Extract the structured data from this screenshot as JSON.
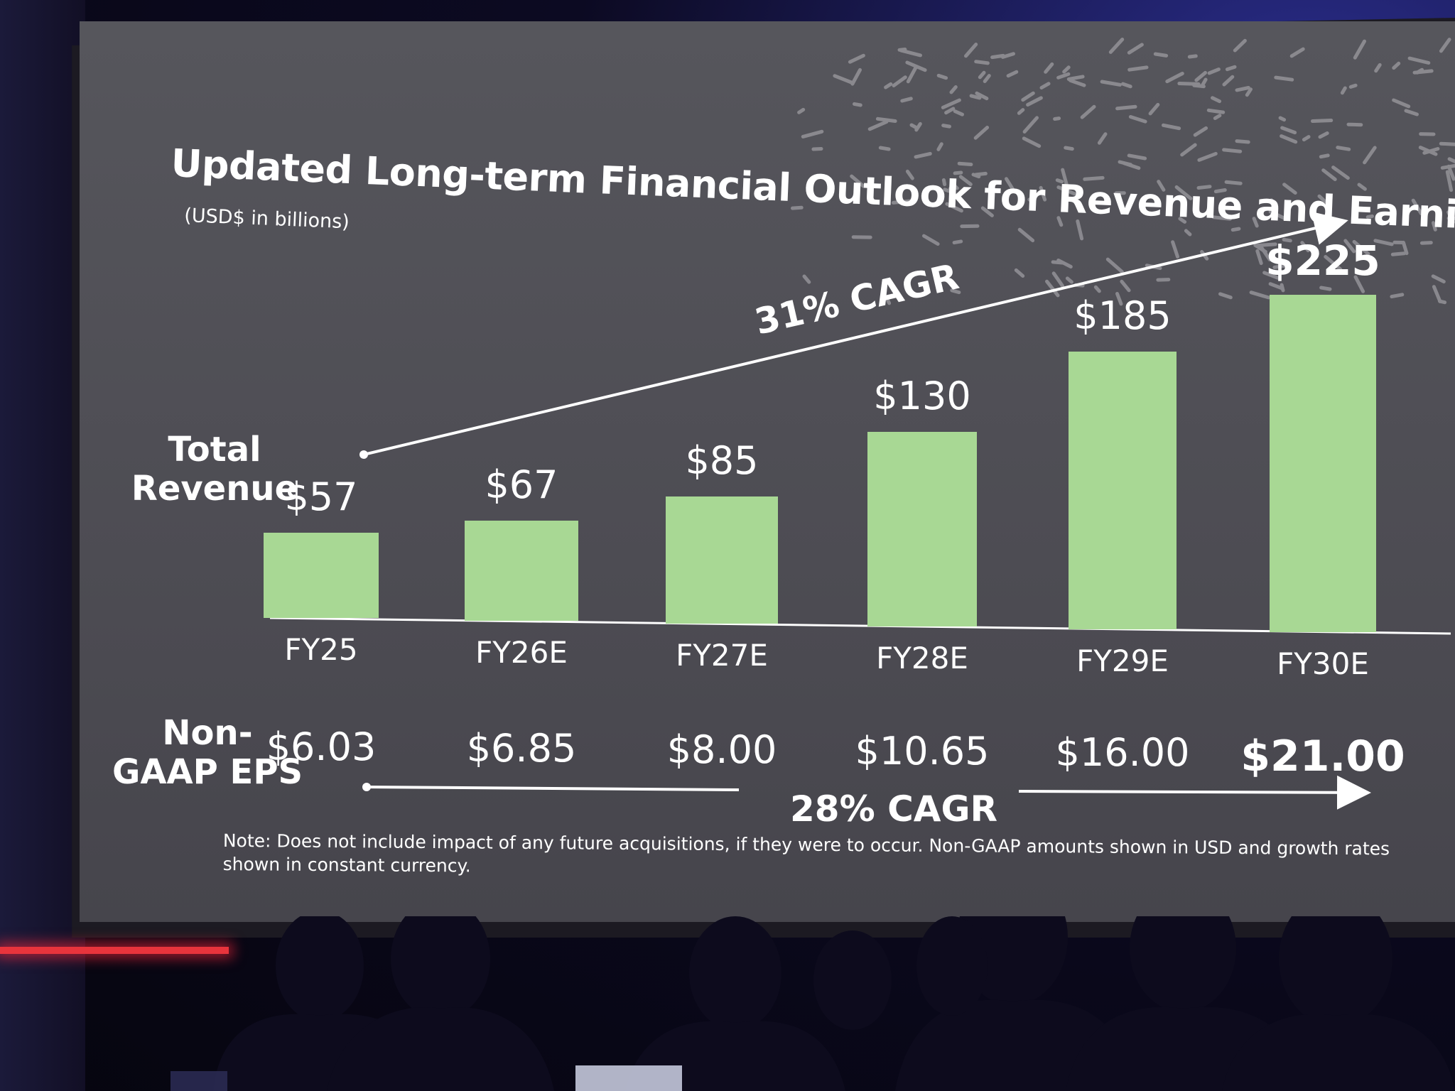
{
  "slide": {
    "title": "Updated Long-term Financial Outlook for Revenue and Earnings",
    "subtitle": "(USD$ in billions)",
    "revenue_row_label": "Total Revenue",
    "eps_row_label_line1": "Non-",
    "eps_row_label_line2": "GAAP EPS",
    "revenue_cagr": "31% CAGR",
    "eps_cagr": "28% CAGR",
    "note": "Note: Does not include impact of any future acquisitions, if they were to occur. Non-GAAP amounts shown in USD and growth rates shown in constant currency."
  },
  "colors": {
    "bar": "#a8d894",
    "background": "#4f4e55",
    "text": "#ffffff"
  },
  "chart_data": {
    "type": "bar",
    "title": "Updated Long-term Financial Outlook for Revenue and Earnings",
    "subtitle": "(USD$ in billions)",
    "categories": [
      "FY25",
      "FY26E",
      "FY27E",
      "FY28E",
      "FY29E",
      "FY30E"
    ],
    "series": [
      {
        "name": "Total Revenue",
        "values": [
          57,
          67,
          85,
          130,
          185,
          225
        ]
      }
    ],
    "value_labels": [
      "$57",
      "$67",
      "$85",
      "$130",
      "$185",
      "$225"
    ],
    "eps_labels": [
      "$6.03",
      "$6.85",
      "$8.00",
      "$10.65",
      "$16.00",
      "$21.00"
    ],
    "eps_values": [
      6.03,
      6.85,
      8.0,
      10.65,
      16.0,
      21.0
    ],
    "ylim": [
      0,
      240
    ],
    "grid": false,
    "legend": "none"
  }
}
